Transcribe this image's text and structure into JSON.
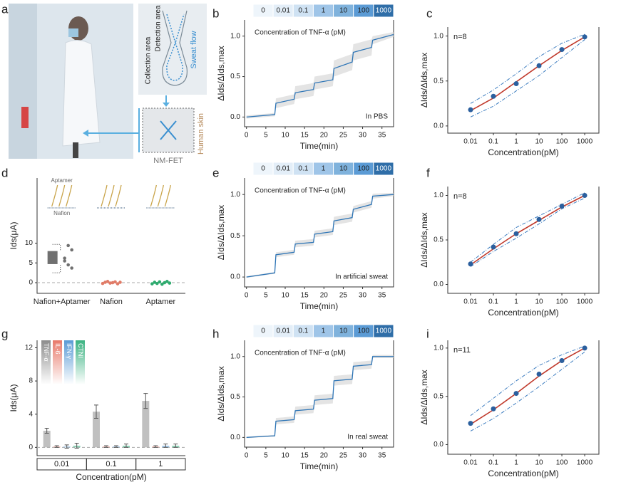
{
  "panel_a": {
    "label": "a",
    "texts": {
      "collection": "Collection area",
      "detection": "Detection area",
      "sweat_flow": "Sweat flow",
      "human_skin": "Human skin",
      "device": "NM-FET"
    }
  },
  "chart_data": [
    {
      "type": "line",
      "panel_label": "b",
      "annotation": "In PBS",
      "xlabel": "Time(min)",
      "ylabel": "ΔIds/ΔIds,max",
      "band_title": "Concentration of TNF-α (pM)",
      "band_labels": [
        "0",
        "0.01",
        "0.1",
        "1",
        "10",
        "100",
        "1000"
      ],
      "band_colors": [
        "#eef5fb",
        "#e3eef8",
        "#cfe2f3",
        "#9fc5e8",
        "#7fb2dc",
        "#5b9bd5",
        "#2f6ea8"
      ],
      "x": [
        0,
        7.3,
        7.6,
        12.3,
        12.6,
        17.3,
        17.6,
        22.3,
        22.6,
        27.3,
        27.6,
        32.3,
        32.6,
        38
      ],
      "values": [
        0.0,
        0.03,
        0.17,
        0.22,
        0.3,
        0.34,
        0.42,
        0.46,
        0.6,
        0.68,
        0.8,
        0.86,
        0.95,
        1.02
      ],
      "spread": [
        0.02,
        0.02,
        0.06,
        0.06,
        0.08,
        0.08,
        0.08,
        0.08,
        0.1,
        0.1,
        0.1,
        0.1,
        0.05,
        0.03
      ],
      "color": "#2e75b6",
      "band_color": "#d9d9d9",
      "xlim": [
        -0.5,
        38
      ],
      "ylim": [
        -0.12,
        1.2
      ],
      "xticks": [
        0,
        5,
        10,
        15,
        20,
        25,
        30,
        35
      ],
      "yticks": [
        {
          "value": 0,
          "label": "0.0"
        },
        {
          "value": 0.5,
          "label": "0.5"
        },
        {
          "value": 1,
          "label": "1.0"
        }
      ]
    },
    {
      "type": "scatter",
      "panel_label": "c",
      "annotation": "n=8",
      "xlabel": "Concentration(pM)",
      "ylabel": "ΔIds/ΔIds,max",
      "log_x": true,
      "x": [
        0.01,
        0.1,
        1,
        10,
        100,
        1000
      ],
      "values": [
        0.18,
        0.33,
        0.47,
        0.67,
        0.85,
        0.99
      ],
      "fit": [
        0.17,
        0.31,
        0.49,
        0.67,
        0.84,
        0.99
      ],
      "upper": [
        0.25,
        0.4,
        0.58,
        0.77,
        0.92,
        1.02
      ],
      "lower": [
        0.1,
        0.22,
        0.39,
        0.56,
        0.76,
        0.96
      ],
      "color": "#2b5f9e",
      "fit_color": "#c0392b",
      "band_line_color": "#3a7bbf",
      "xlim": [
        0.001,
        4200
      ],
      "ylim": [
        -0.08,
        1.1
      ],
      "xticks": [
        0.01,
        0.1,
        1,
        10,
        100,
        1000
      ],
      "yticks": [
        {
          "value": 0,
          "label": "0.0"
        },
        {
          "value": 0.5,
          "label": "0.5"
        },
        {
          "value": 1,
          "label": "1.0"
        }
      ]
    },
    {
      "type": "box",
      "panel_label": "d",
      "ylabel": "Ids(μA)",
      "categories": [
        "Nafion+Aptamer",
        "Nafion",
        "Aptamer"
      ],
      "box": {
        "q1": 4.7,
        "q3": 8.0,
        "low": 2.5,
        "high": 9.7
      },
      "points": [
        [
          6.2,
          9.4,
          8.3,
          5.5,
          4.5,
          3.7
        ],
        [
          -0.2,
          0.1,
          0.3,
          -0.1,
          0.0,
          0.2,
          -0.3,
          0.1
        ],
        [
          -0.3,
          0.1,
          -0.2,
          0.2,
          -0.4,
          0.0,
          0.3,
          -0.1
        ]
      ],
      "colors": [
        "#707070",
        "#e07b67",
        "#2eaa6e"
      ],
      "inset_labels": [
        "Aptamer",
        "Nafion"
      ],
      "ylim": [
        -2.7,
        26.5
      ],
      "yticks": [
        0,
        5,
        10
      ]
    },
    {
      "type": "line",
      "panel_label": "e",
      "annotation": "In artificial sweat",
      "xlabel": "Time(min)",
      "ylabel": "ΔIds/ΔIds,max",
      "band_title": "Concentration of TNF-α (pM)",
      "band_labels": [
        "0",
        "0.01",
        "0.1",
        "1",
        "10",
        "100",
        "1000"
      ],
      "band_colors": [
        "#eef5fb",
        "#e3eef8",
        "#cfe2f3",
        "#9fc5e8",
        "#7fb2dc",
        "#5b9bd5",
        "#2f6ea8"
      ],
      "x": [
        0,
        7.3,
        7.6,
        12.3,
        12.6,
        17.3,
        17.6,
        22.3,
        22.6,
        27.3,
        27.6,
        32.3,
        32.6,
        38
      ],
      "values": [
        0.0,
        0.05,
        0.27,
        0.3,
        0.4,
        0.42,
        0.52,
        0.55,
        0.68,
        0.72,
        0.82,
        0.88,
        0.98,
        1.0
      ],
      "spread": [
        0.01,
        0.01,
        0.03,
        0.03,
        0.04,
        0.04,
        0.04,
        0.04,
        0.05,
        0.05,
        0.04,
        0.04,
        0.03,
        0.02
      ],
      "color": "#2e75b6",
      "band_color": "#d9d9d9",
      "xlim": [
        -0.5,
        38
      ],
      "ylim": [
        -0.12,
        1.2
      ],
      "xticks": [
        0,
        5,
        10,
        15,
        20,
        25,
        30,
        35
      ],
      "yticks": [
        {
          "value": 0,
          "label": "0.0"
        },
        {
          "value": 0.5,
          "label": "0.5"
        },
        {
          "value": 1,
          "label": "1.0"
        }
      ]
    },
    {
      "type": "scatter",
      "panel_label": "f",
      "annotation": "n=8",
      "xlabel": "Concentration(pM)",
      "ylabel": "ΔIds/ΔIds,max",
      "log_x": true,
      "x": [
        0.01,
        0.1,
        1,
        10,
        100,
        1000
      ],
      "values": [
        0.23,
        0.42,
        0.57,
        0.73,
        0.88,
        1.0
      ],
      "fit": [
        0.22,
        0.4,
        0.57,
        0.72,
        0.87,
        1.0
      ],
      "upper": [
        0.25,
        0.45,
        0.64,
        0.77,
        0.9,
        1.03
      ],
      "lower": [
        0.2,
        0.37,
        0.52,
        0.68,
        0.85,
        0.97
      ],
      "color": "#2b5f9e",
      "fit_color": "#c0392b",
      "band_line_color": "#3a7bbf",
      "xlim": [
        0.001,
        4200
      ],
      "ylim": [
        -0.1,
        1.1
      ],
      "xticks": [
        0.01,
        0.1,
        1,
        10,
        100,
        1000
      ],
      "yticks": [
        {
          "value": 0,
          "label": "0.0"
        },
        {
          "value": 0.5,
          "label": "0.5"
        },
        {
          "value": 1,
          "label": "1.0"
        }
      ]
    },
    {
      "type": "bar",
      "panel_label": "g",
      "ylabel": "Ids(μA)",
      "xlabel": "Concentration(pM)",
      "categories": [
        "0.01",
        "0.1",
        "1"
      ],
      "series": [
        {
          "name": "TNF-α",
          "color": "#8c8c8c",
          "values": [
            2.0,
            4.3,
            5.6
          ],
          "errors": [
            0.3,
            0.8,
            0.9
          ]
        },
        {
          "name": "IL-6",
          "color": "#e8796a",
          "values": [
            0.1,
            0.1,
            0.1
          ],
          "errors": [
            0.1,
            0.1,
            0.1
          ]
        },
        {
          "name": "IFN-γ",
          "color": "#5b9bd5",
          "values": [
            0.1,
            0.1,
            0.2
          ],
          "errors": [
            0.2,
            0.1,
            0.2
          ]
        },
        {
          "name": "CTNI",
          "color": "#3cb382",
          "values": [
            0.2,
            0.2,
            0.2
          ],
          "errors": [
            0.3,
            0.2,
            0.2
          ]
        }
      ],
      "ylim": [
        -1,
        12.9
      ],
      "yticks": [
        0,
        4,
        8,
        12
      ]
    },
    {
      "type": "line",
      "panel_label": "h",
      "annotation": "In real sweat",
      "xlabel": "Time(min)",
      "ylabel": "ΔIds/ΔIds,max",
      "band_title": "Concentration of TNF-α (pM)",
      "band_labels": [
        "0",
        "0.01",
        "0.1",
        "1",
        "10",
        "100",
        "1000"
      ],
      "band_colors": [
        "#eef5fb",
        "#e3eef8",
        "#cfe2f3",
        "#9fc5e8",
        "#7fb2dc",
        "#5b9bd5",
        "#2f6ea8"
      ],
      "x": [
        0,
        7.3,
        7.6,
        12.3,
        12.6,
        17.3,
        17.6,
        22.3,
        22.6,
        27.3,
        27.6,
        32.3,
        32.6,
        38
      ],
      "values": [
        0.0,
        0.02,
        0.2,
        0.22,
        0.33,
        0.35,
        0.46,
        0.48,
        0.7,
        0.72,
        0.88,
        0.9,
        1.0,
        1.0
      ],
      "spread": [
        0.01,
        0.01,
        0.04,
        0.04,
        0.05,
        0.05,
        0.06,
        0.06,
        0.06,
        0.06,
        0.05,
        0.05,
        0.02,
        0.02
      ],
      "color": "#2e75b6",
      "band_color": "#d9d9d9",
      "xlim": [
        -0.5,
        38
      ],
      "ylim": [
        -0.12,
        1.2
      ],
      "xticks": [
        0,
        5,
        10,
        15,
        20,
        25,
        30,
        35
      ],
      "yticks": [
        {
          "value": 0,
          "label": "0.0"
        },
        {
          "value": 0.5,
          "label": "0.5"
        },
        {
          "value": 1,
          "label": "1.0"
        }
      ]
    },
    {
      "type": "scatter",
      "panel_label": "i",
      "annotation": "n=11",
      "xlabel": "Concentration(pM)",
      "ylabel": "ΔIds/ΔIds,max",
      "log_x": true,
      "x": [
        0.01,
        0.1,
        1,
        10,
        100,
        1000
      ],
      "values": [
        0.22,
        0.37,
        0.53,
        0.73,
        0.87,
        1.0
      ],
      "fit": [
        0.21,
        0.36,
        0.53,
        0.71,
        0.87,
        1.0
      ],
      "upper": [
        0.3,
        0.48,
        0.66,
        0.82,
        0.93,
        1.02
      ],
      "lower": [
        0.14,
        0.27,
        0.43,
        0.6,
        0.78,
        0.96
      ],
      "color": "#2b5f9e",
      "fit_color": "#c0392b",
      "band_line_color": "#3a7bbf",
      "xlim": [
        0.001,
        4200
      ],
      "ylim": [
        -0.1,
        1.08
      ],
      "xticks": [
        0.01,
        0.1,
        1,
        10,
        100,
        1000
      ],
      "yticks": [
        {
          "value": 0,
          "label": "0.0"
        },
        {
          "value": 0.5,
          "label": "0.5"
        },
        {
          "value": 1,
          "label": "1.0"
        }
      ]
    }
  ]
}
